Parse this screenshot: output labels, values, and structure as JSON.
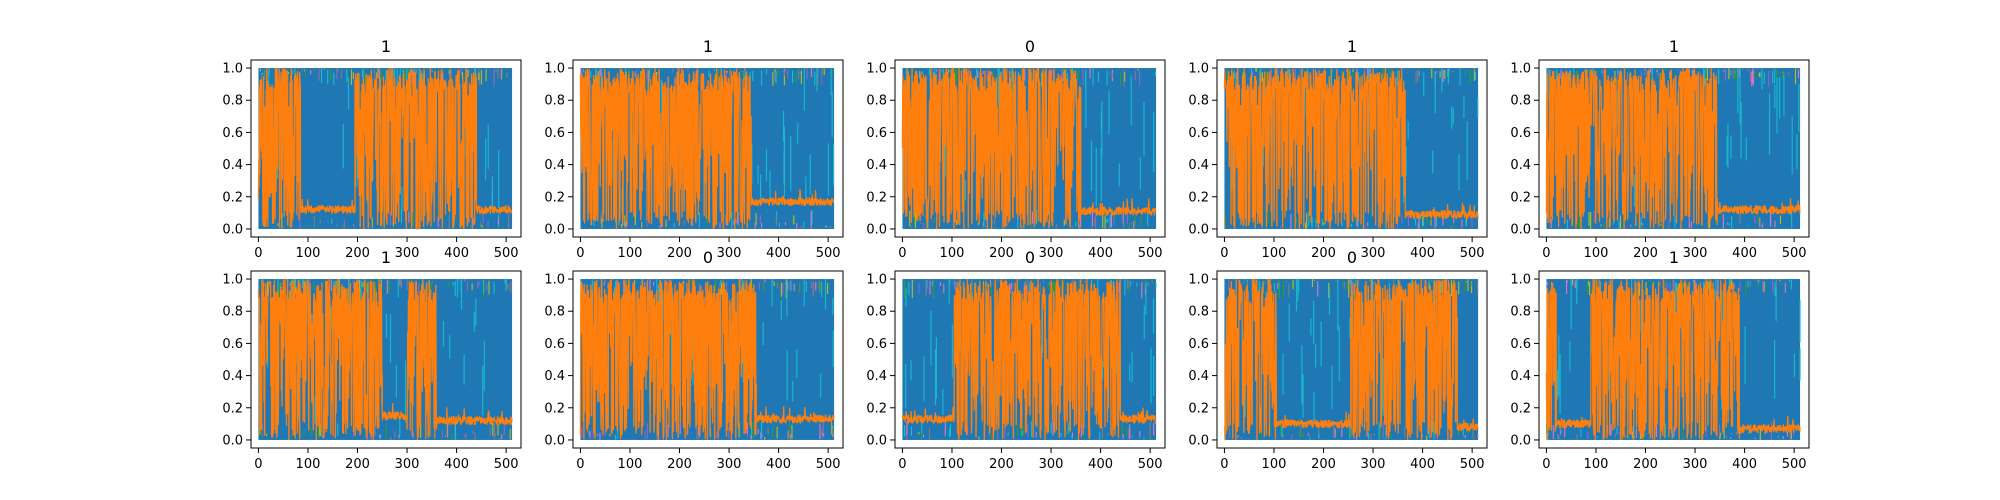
{
  "figure": {
    "colors": {
      "background": "#ffffff",
      "frame": "#000000",
      "blue": "#1f77b4",
      "orange": "#ff7f0e",
      "cyan": "#17becf",
      "olive": "#bcbd22",
      "green": "#2ca02c",
      "purple": "#9467bd",
      "pink": "#e377c2",
      "gray": "#7f7f7f"
    }
  },
  "chart_data": [
    {
      "type": "line",
      "title": "1",
      "xlim": [
        -15,
        530
      ],
      "ylim": [
        -0.05,
        1.05
      ],
      "xticks": [
        0,
        100,
        200,
        300,
        400,
        500
      ],
      "yticks": [
        0.0,
        0.2,
        0.4,
        0.6,
        0.8,
        1.0
      ],
      "series": [
        {
          "color": "blue",
          "style": "dense-band",
          "x": [
            0,
            512
          ],
          "y": [
            0.0,
            1.0
          ]
        },
        {
          "color": "orange",
          "style": "noisy-segments",
          "segments": [
            {
              "x": [
                0,
                85
              ],
              "regime": "high"
            },
            {
              "x": [
                85,
                195
              ],
              "regime": "low",
              "level": 0.12
            },
            {
              "x": [
                195,
                440
              ],
              "regime": "high"
            },
            {
              "x": [
                440,
                512
              ],
              "regime": "low",
              "level": 0.12
            }
          ]
        }
      ]
    },
    {
      "type": "line",
      "title": "1",
      "xlim": [
        -15,
        530
      ],
      "ylim": [
        -0.05,
        1.05
      ],
      "xticks": [
        0,
        100,
        200,
        300,
        400,
        500
      ],
      "yticks": [
        0.0,
        0.2,
        0.4,
        0.6,
        0.8,
        1.0
      ],
      "series": [
        {
          "color": "blue",
          "style": "dense-band",
          "x": [
            0,
            512
          ],
          "y": [
            0.0,
            1.0
          ]
        },
        {
          "color": "orange",
          "style": "noisy-segments",
          "segments": [
            {
              "x": [
                0,
                345
              ],
              "regime": "high"
            },
            {
              "x": [
                345,
                512
              ],
              "regime": "low",
              "level": 0.17
            }
          ]
        }
      ]
    },
    {
      "type": "line",
      "title": "0",
      "xlim": [
        -15,
        530
      ],
      "ylim": [
        -0.05,
        1.05
      ],
      "xticks": [
        0,
        100,
        200,
        300,
        400,
        500
      ],
      "yticks": [
        0.0,
        0.2,
        0.4,
        0.6,
        0.8,
        1.0
      ],
      "series": [
        {
          "color": "blue",
          "style": "dense-band",
          "x": [
            0,
            512
          ],
          "y": [
            0.0,
            1.0
          ]
        },
        {
          "color": "orange",
          "style": "noisy-segments",
          "segments": [
            {
              "x": [
                0,
                360
              ],
              "regime": "high"
            },
            {
              "x": [
                360,
                512
              ],
              "regime": "low",
              "level": 0.11
            }
          ]
        }
      ]
    },
    {
      "type": "line",
      "title": "1",
      "xlim": [
        -15,
        530
      ],
      "ylim": [
        -0.05,
        1.05
      ],
      "xticks": [
        0,
        100,
        200,
        300,
        400,
        500
      ],
      "yticks": [
        0.0,
        0.2,
        0.4,
        0.6,
        0.8,
        1.0
      ],
      "series": [
        {
          "color": "blue",
          "style": "dense-band",
          "x": [
            0,
            512
          ],
          "y": [
            0.0,
            1.0
          ]
        },
        {
          "color": "orange",
          "style": "noisy-segments",
          "segments": [
            {
              "x": [
                0,
                365
              ],
              "regime": "high"
            },
            {
              "x": [
                365,
                512
              ],
              "regime": "low",
              "level": 0.09
            }
          ]
        }
      ]
    },
    {
      "type": "line",
      "title": "1",
      "xlim": [
        -15,
        530
      ],
      "ylim": [
        -0.05,
        1.05
      ],
      "xticks": [
        0,
        100,
        200,
        300,
        400,
        500
      ],
      "yticks": [
        0.0,
        0.2,
        0.4,
        0.6,
        0.8,
        1.0
      ],
      "series": [
        {
          "color": "blue",
          "style": "dense-band",
          "x": [
            0,
            512
          ],
          "y": [
            0.0,
            1.0
          ]
        },
        {
          "color": "orange",
          "style": "noisy-segments",
          "segments": [
            {
              "x": [
                0,
                345
              ],
              "regime": "high"
            },
            {
              "x": [
                345,
                512
              ],
              "regime": "low",
              "level": 0.12
            }
          ]
        }
      ]
    },
    {
      "type": "line",
      "title": "1",
      "xlim": [
        -15,
        530
      ],
      "ylim": [
        -0.05,
        1.05
      ],
      "xticks": [
        0,
        100,
        200,
        300,
        400,
        500
      ],
      "yticks": [
        0.0,
        0.2,
        0.4,
        0.6,
        0.8,
        1.0
      ],
      "series": [
        {
          "color": "blue",
          "style": "dense-band",
          "x": [
            0,
            512
          ],
          "y": [
            0.0,
            1.0
          ]
        },
        {
          "color": "orange",
          "style": "noisy-segments",
          "segments": [
            {
              "x": [
                0,
                250
              ],
              "regime": "high"
            },
            {
              "x": [
                250,
                300
              ],
              "regime": "low",
              "level": 0.15
            },
            {
              "x": [
                300,
                360
              ],
              "regime": "high"
            },
            {
              "x": [
                360,
                512
              ],
              "regime": "low",
              "level": 0.12
            }
          ]
        }
      ]
    },
    {
      "type": "line",
      "title": "0",
      "xlim": [
        -15,
        530
      ],
      "ylim": [
        -0.05,
        1.05
      ],
      "xticks": [
        0,
        100,
        200,
        300,
        400,
        500
      ],
      "yticks": [
        0.0,
        0.2,
        0.4,
        0.6,
        0.8,
        1.0
      ],
      "series": [
        {
          "color": "blue",
          "style": "dense-band",
          "x": [
            0,
            512
          ],
          "y": [
            0.0,
            1.0
          ]
        },
        {
          "color": "orange",
          "style": "noisy-segments",
          "segments": [
            {
              "x": [
                0,
                355
              ],
              "regime": "high"
            },
            {
              "x": [
                355,
                512
              ],
              "regime": "low",
              "level": 0.13
            }
          ]
        }
      ]
    },
    {
      "type": "line",
      "title": "0",
      "xlim": [
        -15,
        530
      ],
      "ylim": [
        -0.05,
        1.05
      ],
      "xticks": [
        0,
        100,
        200,
        300,
        400,
        500
      ],
      "yticks": [
        0.0,
        0.2,
        0.4,
        0.6,
        0.8,
        1.0
      ],
      "series": [
        {
          "color": "blue",
          "style": "dense-band",
          "x": [
            0,
            512
          ],
          "y": [
            0.0,
            1.0
          ]
        },
        {
          "color": "orange",
          "style": "noisy-segments",
          "segments": [
            {
              "x": [
                0,
                105
              ],
              "regime": "low",
              "level": 0.13
            },
            {
              "x": [
                105,
                440
              ],
              "regime": "high"
            },
            {
              "x": [
                440,
                512
              ],
              "regime": "low",
              "level": 0.13
            }
          ]
        }
      ]
    },
    {
      "type": "line",
      "title": "0",
      "xlim": [
        -15,
        530
      ],
      "ylim": [
        -0.05,
        1.05
      ],
      "xticks": [
        0,
        100,
        200,
        300,
        400,
        500
      ],
      "yticks": [
        0.0,
        0.2,
        0.4,
        0.6,
        0.8,
        1.0
      ],
      "series": [
        {
          "color": "blue",
          "style": "dense-band",
          "x": [
            0,
            512
          ],
          "y": [
            0.0,
            1.0
          ]
        },
        {
          "color": "orange",
          "style": "noisy-segments",
          "segments": [
            {
              "x": [
                0,
                105
              ],
              "regime": "high"
            },
            {
              "x": [
                105,
                255
              ],
              "regime": "low",
              "level": 0.1
            },
            {
              "x": [
                255,
                470
              ],
              "regime": "high"
            },
            {
              "x": [
                470,
                512
              ],
              "regime": "low",
              "level": 0.08
            }
          ]
        }
      ]
    },
    {
      "type": "line",
      "title": "1",
      "xlim": [
        -15,
        530
      ],
      "ylim": [
        -0.05,
        1.05
      ],
      "xticks": [
        0,
        100,
        200,
        300,
        400,
        500
      ],
      "yticks": [
        0.0,
        0.2,
        0.4,
        0.6,
        0.8,
        1.0
      ],
      "series": [
        {
          "color": "blue",
          "style": "dense-band",
          "x": [
            0,
            512
          ],
          "y": [
            0.0,
            1.0
          ]
        },
        {
          "color": "orange",
          "style": "noisy-segments",
          "segments": [
            {
              "x": [
                0,
                20
              ],
              "regime": "high"
            },
            {
              "x": [
                20,
                90
              ],
              "regime": "low",
              "level": 0.1
            },
            {
              "x": [
                90,
                390
              ],
              "regime": "high"
            },
            {
              "x": [
                390,
                512
              ],
              "regime": "low",
              "level": 0.07
            }
          ]
        }
      ]
    }
  ]
}
